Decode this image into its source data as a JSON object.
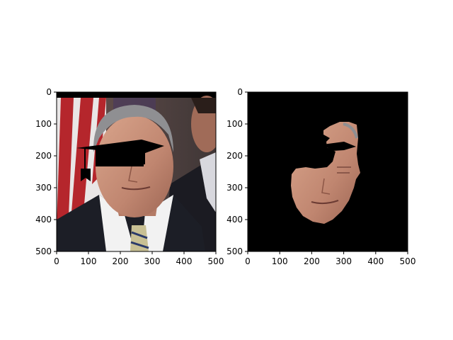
{
  "chart_data": [
    {
      "type": "image",
      "xlim": [
        0,
        500
      ],
      "ylim": [
        500,
        0
      ],
      "xticks": [
        0,
        100,
        200,
        300,
        400,
        500
      ],
      "yticks": [
        0,
        100,
        200,
        300,
        400,
        500
      ],
      "xticklabels": [
        "0",
        "100",
        "200",
        "300",
        "400",
        "500"
      ],
      "yticklabels": [
        "0",
        "100",
        "200",
        "300",
        "400",
        "500"
      ],
      "content": "photo of man in suit with black graduation-cap overlay, flag background",
      "title": "",
      "xlabel": "",
      "ylabel": ""
    },
    {
      "type": "image",
      "xlim": [
        0,
        500
      ],
      "ylim": [
        500,
        0
      ],
      "xticks": [
        0,
        100,
        200,
        300,
        400,
        500
      ],
      "yticks": [
        0,
        100,
        200,
        300,
        400,
        500
      ],
      "xticklabels": [
        "0",
        "100",
        "200",
        "300",
        "400",
        "500"
      ],
      "yticklabels": [
        "0",
        "100",
        "200",
        "300",
        "400",
        "500"
      ],
      "content": "segmented face region on black background",
      "title": "",
      "xlabel": "",
      "ylabel": ""
    }
  ],
  "colors": {
    "background": "#ffffff",
    "mask": "#000000",
    "skin": "#c9907a",
    "suit": "#1c1e26",
    "flag_red": "#b5262c",
    "flag_white": "#e9e6e6"
  }
}
